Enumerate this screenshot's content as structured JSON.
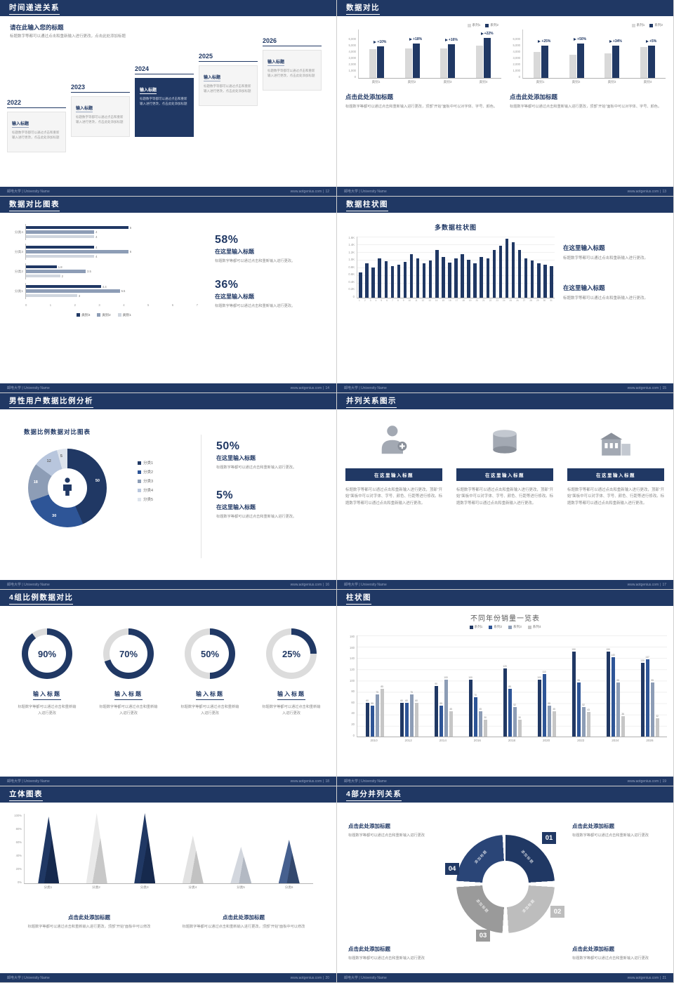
{
  "footer": {
    "left": "邮电大学 | University Name",
    "site": "www.aotgenius.com",
    "sep": "|"
  },
  "slides": {
    "s12": {
      "title": "时间递进关系",
      "page": "12",
      "intro_title": "请在此输入您的标题",
      "intro_text": "标题数字等都可以通过点击和重新输入进行更改，点击此处添加标题",
      "years": [
        "2022",
        "2023",
        "2024",
        "2025",
        "2026"
      ],
      "box_title": "输入标题",
      "box_text": "标题数字等都可以通过点击和重新输入进行更改，点击此处添加标题"
    },
    "s13": {
      "title": "数据对比",
      "page": "13",
      "legend": [
        "系列1",
        "系列2"
      ],
      "caption_title": "点击此处添加标题",
      "caption_text": "标题数字等都可以通过点击和重新输入进行更改，顶部“开始”面板中可以对字体、字号、颜色。",
      "charts": [
        {
          "categories": [
            "类别1",
            "类别2",
            "类别3",
            "类别4"
          ],
          "pcts": [
            "+10%",
            "+18%",
            "+16%",
            "+22%"
          ],
          "series1": [
            4200,
            4300,
            4300,
            4800
          ],
          "series2": [
            4700,
            5100,
            5000,
            5900
          ],
          "ymax": 6000,
          "yticks": [
            "6,000",
            "5,000",
            "4,000",
            "3,000",
            "2,000",
            "1,000",
            "0"
          ]
        },
        {
          "categories": [
            "类别1",
            "类别2",
            "类别3",
            "类别4"
          ],
          "pcts": [
            "+25%",
            "+50%",
            "+34%",
            "+5%"
          ],
          "series1": [
            3800,
            3400,
            3600,
            4600
          ],
          "series2": [
            4800,
            5100,
            4800,
            4800
          ],
          "ymax": 6000,
          "yticks": [
            "6,000",
            "5,000",
            "4,000",
            "3,000",
            "2,000",
            "1,000",
            "0"
          ]
        }
      ]
    },
    "s14": {
      "title": "数据对比图表",
      "page": "14",
      "chart": {
        "xmax": 7,
        "xticks": [
          "0",
          "1",
          "2",
          "3",
          "4",
          "5",
          "6",
          "7"
        ],
        "legend": [
          "类别3",
          "类别2",
          "类别1"
        ],
        "groups": [
          {
            "label": "分类4",
            "values": [
              6,
              4,
              4
            ]
          },
          {
            "label": "分类3",
            "values": [
              4,
              6,
              4
            ]
          },
          {
            "label": "分类2",
            "values": [
              1.8,
              3.5,
              2
            ]
          },
          {
            "label": "分类1",
            "values": [
              4.4,
              5.5,
              3
            ]
          }
        ]
      },
      "stats": [
        {
          "pct": "58%",
          "title": "在这里输入标题",
          "text": "标题数字等都可以通过点击和重新输入进行更改。"
        },
        {
          "pct": "36%",
          "title": "在这里输入标题",
          "text": "标题数字等都可以通过点击和重新输入进行更改。"
        }
      ]
    },
    "s15": {
      "title": "数据柱状图",
      "page": "15",
      "chart_title": "多数据柱状图",
      "chart": {
        "ymax": 1600,
        "yticks": [
          "1.6K",
          "1.4K",
          "1.2K",
          "1.0K",
          "0.8K",
          "0.6K",
          "0.4K",
          "0.2K",
          "0"
        ],
        "values": [
          650,
          900,
          780,
          1020,
          950,
          820,
          860,
          920,
          1120,
          1010,
          900,
          960,
          1230,
          1060,
          910,
          1010,
          1120,
          980,
          900,
          1060,
          1010,
          1230,
          1340,
          1520,
          1430,
          1230,
          1010,
          960,
          900,
          860,
          820
        ]
      },
      "blocks": [
        {
          "title": "在这里输入标题",
          "text": "标题数字等都可以通过点击和重新输入进行更改。"
        },
        {
          "title": "在这里输入标题",
          "text": "标题数字等都可以通过点击和重新输入进行更改。"
        }
      ]
    },
    "s16": {
      "title": "男性用户数据比例分析",
      "page": "16",
      "chart_title": "数据比例数据对比图表",
      "chart": {
        "values": [
          50,
          30,
          18,
          12,
          5
        ],
        "colors": [
          "#203864",
          "#2e5597",
          "#8d9db6",
          "#b8c6dd",
          "#dde3ec"
        ]
      },
      "legend": [
        "分类1",
        "分类2",
        "分类3",
        "分类4",
        "分类5"
      ],
      "stats": [
        {
          "pct": "50%",
          "title": "在这里输入标题",
          "text": "标题数字等都可以通过点击和重新输入进行更改。"
        },
        {
          "pct": "5%",
          "title": "在这里输入标题",
          "text": "标题数字等都可以通过点击和重新输入进行更改。"
        }
      ]
    },
    "s17": {
      "title": "并列关系图示",
      "page": "17",
      "button": "在这里输入标题",
      "text": "标题数字等都可以通过点击和重新输入进行更改，顶部“开始”面板中可以对字体、字号、颜色、行距等进行修改。标题数字等都可以通过点击和重新输入进行更改。"
    },
    "s18": {
      "title": "4组比例数据对比",
      "page": "18",
      "items": [
        {
          "value": 90,
          "label": "90%",
          "title": "输入标题",
          "text": "标题数字等都可以通过点击和重新输入进行更改"
        },
        {
          "value": 70,
          "label": "70%",
          "title": "输入标题",
          "text": "标题数字等都可以通过点击和重新输入进行更改"
        },
        {
          "value": 50,
          "label": "50%",
          "title": "输入标题",
          "text": "标题数字等都可以通过点击和重新输入进行更改"
        },
        {
          "value": 25,
          "label": "25%",
          "title": "输入标题",
          "text": "标题数字等都可以通过点击和重新输入进行更改"
        }
      ]
    },
    "s19": {
      "title": "柱状图",
      "page": "19",
      "chart_title": "不同年份销量一览表",
      "legend": [
        "系列1",
        "系列2",
        "系列3",
        "系列4"
      ],
      "chart": {
        "ymax": 180,
        "yticks": [
          "180",
          "160",
          "140",
          "120",
          "100",
          "80",
          "60",
          "40",
          "20",
          "0"
        ],
        "categories": [
          "2010",
          "2012",
          "2014",
          "2016",
          "2018",
          "2020",
          "2022",
          "2024",
          "2026"
        ],
        "series": [
          {
            "name": "系列1",
            "values": [
              60,
              60,
              90,
              100,
              120,
              100,
              150,
              150,
              130
            ]
          },
          {
            "name": "系列2",
            "values": [
              55,
              60,
              55,
              70,
              85,
              110,
              95,
              140,
              137
            ]
          },
          {
            "name": "系列3",
            "values": [
              75,
              75,
              100,
              45,
              52,
              55,
              52,
              95,
              95
            ]
          },
          {
            "name": "系列4",
            "values": [
              85,
              60,
              45,
              30,
              30,
              45,
              43,
              36,
              32
            ]
          }
        ]
      }
    },
    "s20": {
      "title": "立体图表",
      "page": "20",
      "chart": {
        "yticks": [
          "100%",
          "80%",
          "60%",
          "40%",
          "20%",
          "0%"
        ],
        "items": [
          {
            "label": "分类1",
            "value": 95,
            "color": "#203864",
            "shade": "#16294d"
          },
          {
            "label": "分类2",
            "value": 100,
            "color": "#e9e9e9",
            "shade": "#c8c8c8"
          },
          {
            "label": "分类3",
            "value": 100,
            "color": "#203864",
            "shade": "#16294d"
          },
          {
            "label": "分类4",
            "value": 68,
            "color": "#e2e2e2",
            "shade": "#c2c2c2"
          },
          {
            "label": "分类5",
            "value": 52,
            "color": "#d3d7de",
            "shade": "#b3b9c3"
          },
          {
            "label": "分类6",
            "value": 62,
            "color": "#46608f",
            "shade": "#33486d"
          }
        ]
      },
      "captions": [
        {
          "title": "点击此处添加标题",
          "text": "标题数字等都可以通过点击和重新输入进行更改，顶部“开始”面板中可以修改"
        },
        {
          "title": "点击此处添加标题",
          "text": "标题数字等都可以通过点击和重新输入进行更改，顶部“开始”面板中可以修改"
        }
      ]
    },
    "s21": {
      "title": "4部分并列关系",
      "page": "21",
      "seg_label": "添加标题",
      "badges": [
        "01",
        "02",
        "03",
        "04"
      ],
      "ring": {
        "segments": [
          {
            "color": "#203864"
          },
          {
            "color": "#bdbdbd"
          },
          {
            "color": "#9a9a9a"
          },
          {
            "color": "#2a4577"
          }
        ]
      },
      "blocks": [
        {
          "title": "点击此处添加标题",
          "text": "标题数字等都可以通过点击和重新输入进行更改"
        },
        {
          "title": "点击此处添加标题",
          "text": "标题数字等都可以通过点击和重新输入进行更改"
        },
        {
          "title": "点击此处添加标题",
          "text": "标题数字等都可以通过点击和重新输入进行更改"
        },
        {
          "title": "点击此处添加标题",
          "text": "标题数字等都可以通过点击和重新输入进行更改"
        }
      ]
    }
  }
}
